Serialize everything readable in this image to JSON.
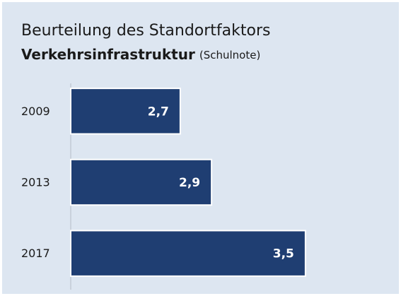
{
  "chart_data": {
    "type": "bar",
    "orientation": "horizontal",
    "title": "Beurteilung des Standortfaktors",
    "subtitle": "Verkehrsinfrastruktur",
    "subtitle_note": "(Schulnote)",
    "categories": [
      "2009",
      "2013",
      "2017"
    ],
    "values": [
      2.7,
      2.9,
      3.5
    ],
    "value_labels": [
      "2,7",
      "2,9",
      "3,5"
    ],
    "color": "#1f3e72",
    "xlim": [
      2,
      3.6
    ]
  }
}
